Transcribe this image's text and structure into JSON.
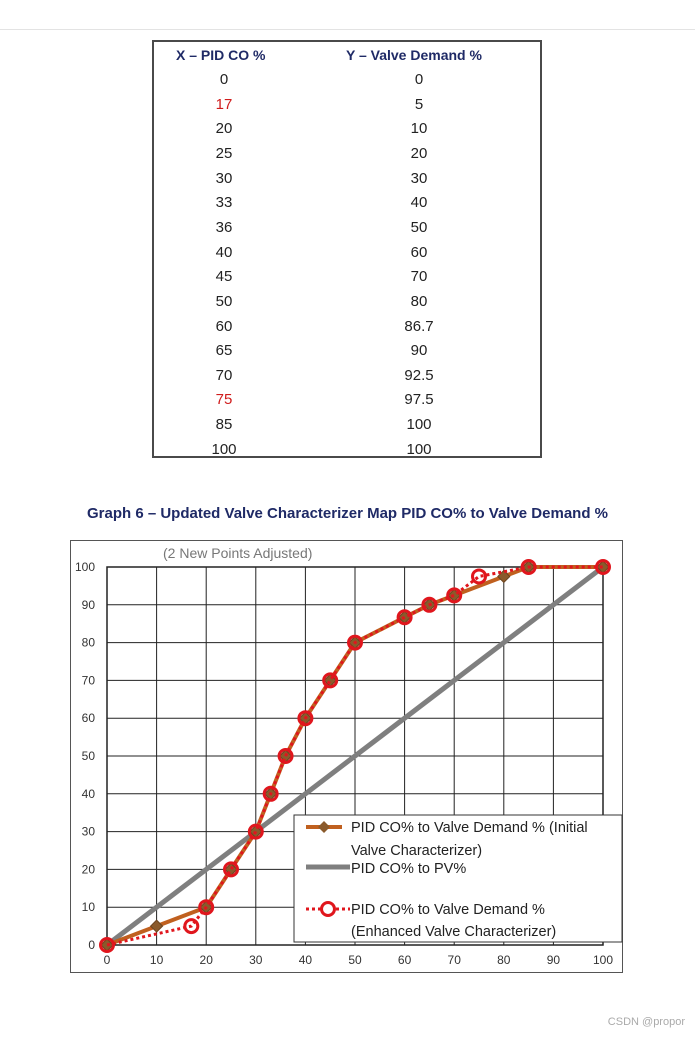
{
  "table": {
    "header_x": "X – PID CO %",
    "header_y": "Y – Valve Demand %",
    "rows": [
      {
        "x": "0",
        "y": "0",
        "highlight": false
      },
      {
        "x": "17",
        "y": "5",
        "highlight": true
      },
      {
        "x": "20",
        "y": "10",
        "highlight": false
      },
      {
        "x": "25",
        "y": "20",
        "highlight": false
      },
      {
        "x": "30",
        "y": "30",
        "highlight": false
      },
      {
        "x": "33",
        "y": "40",
        "highlight": false
      },
      {
        "x": "36",
        "y": "50",
        "highlight": false
      },
      {
        "x": "40",
        "y": "60",
        "highlight": false
      },
      {
        "x": "45",
        "y": "70",
        "highlight": false
      },
      {
        "x": "50",
        "y": "80",
        "highlight": false
      },
      {
        "x": "60",
        "y": "86.7",
        "highlight": false
      },
      {
        "x": "65",
        "y": "90",
        "highlight": false
      },
      {
        "x": "70",
        "y": "92.5",
        "highlight": false
      },
      {
        "x": "75",
        "y": "97.5",
        "highlight": true
      },
      {
        "x": "85",
        "y": "100",
        "highlight": false
      },
      {
        "x": "100",
        "y": "100",
        "highlight": false
      }
    ]
  },
  "graph_title": "Graph 6 – Updated Valve Characterizer Map PID CO% to Valve Demand %",
  "chart_data": {
    "type": "line",
    "subtitle": "(2 New Points Adjusted)",
    "xlim": [
      0,
      100
    ],
    "ylim": [
      0,
      100
    ],
    "x_ticks": [
      0,
      10,
      20,
      30,
      40,
      50,
      60,
      70,
      80,
      90,
      100
    ],
    "y_ticks": [
      0,
      10,
      20,
      30,
      40,
      50,
      60,
      70,
      80,
      90,
      100
    ],
    "grid": true,
    "legend_position": "bottom-right",
    "series": [
      {
        "name": "PID CO% to Valve Demand % (Initial Valve Characterizer)",
        "color": "#c0601f",
        "marker": "diamond",
        "x": [
          0,
          10,
          20,
          25,
          30,
          33,
          36,
          40,
          45,
          50,
          60,
          65,
          70,
          80,
          85,
          100
        ],
        "y": [
          0,
          5,
          10,
          20,
          30,
          40,
          50,
          60,
          70,
          80,
          86.7,
          90,
          92.5,
          97.5,
          100,
          100
        ]
      },
      {
        "name": "PID CO% to PV%",
        "color": "#7f7f7f",
        "marker": "none",
        "x": [
          0,
          100
        ],
        "y": [
          0,
          100
        ]
      },
      {
        "name": "PID CO% to Valve Demand % (Enhanced Valve Characterizer)",
        "color": "#e0161d",
        "marker": "circle",
        "dashed": true,
        "x": [
          0,
          17,
          20,
          25,
          30,
          33,
          36,
          40,
          45,
          50,
          60,
          65,
          70,
          75,
          85,
          100
        ],
        "y": [
          0,
          5,
          10,
          20,
          30,
          40,
          50,
          60,
          70,
          80,
          86.7,
          90,
          92.5,
          97.5,
          100,
          100
        ]
      }
    ],
    "legend_lines": [
      [
        "PID CO% to Valve Demand % (Initial",
        "Valve Characterizer)"
      ],
      [
        "PID CO% to PV%"
      ],
      [
        "PID CO% to Valve Demand %",
        "(Enhanced Valve Characterizer)"
      ]
    ]
  },
  "watermark": "CSDN @propor"
}
